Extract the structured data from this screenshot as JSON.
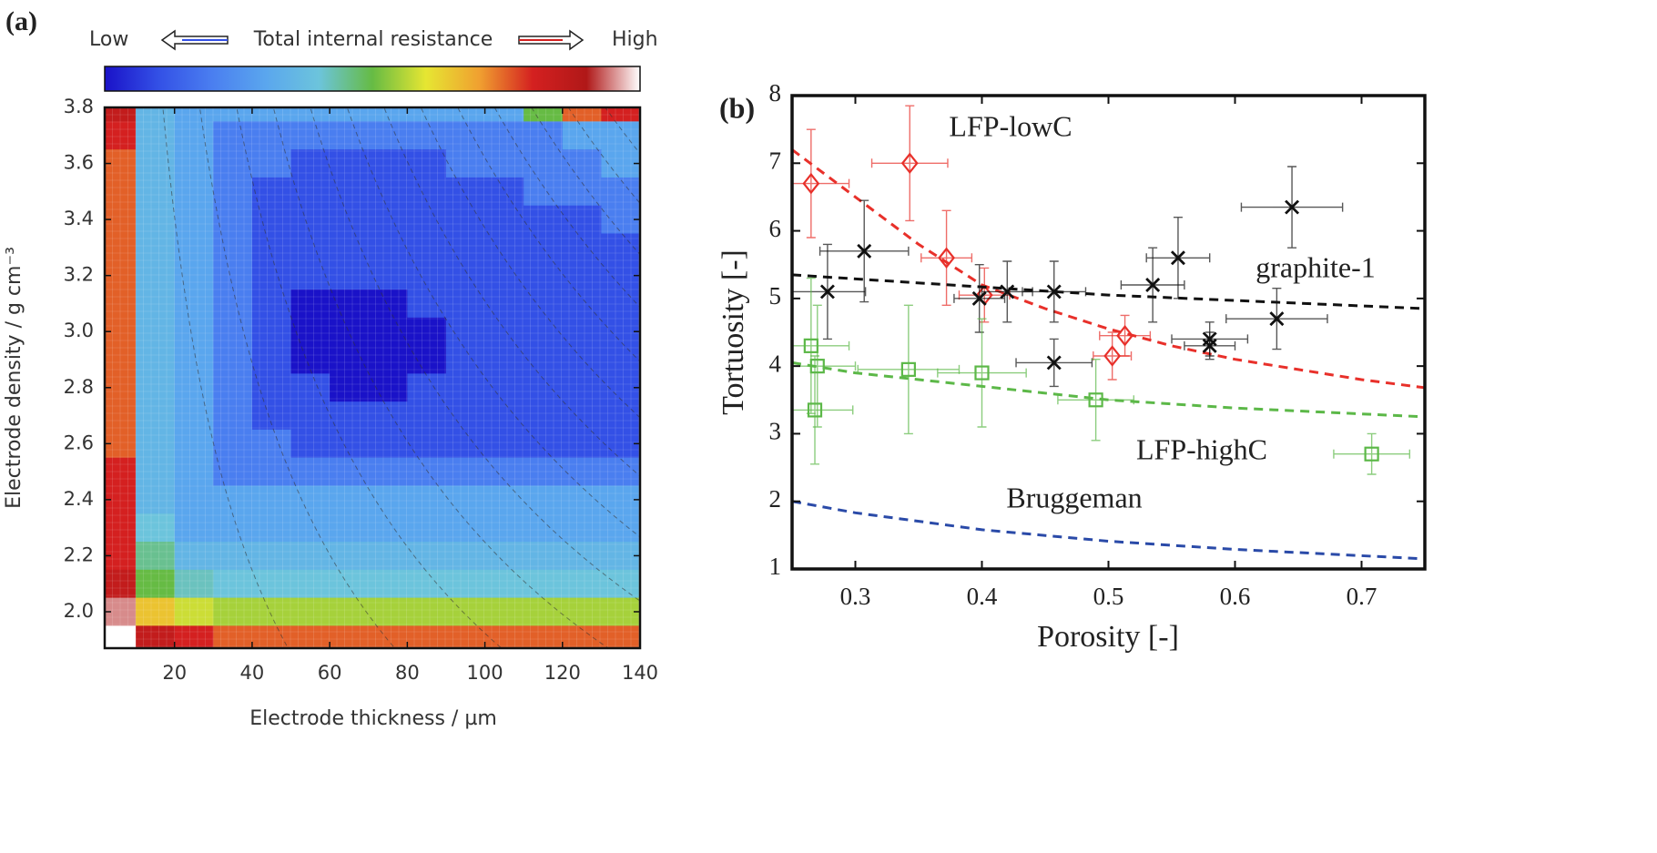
{
  "chart_data": [
    {
      "type": "heatmap",
      "panel_label": "(a)",
      "title": "Total internal resistance",
      "colorbar_low": "Low",
      "colorbar_high": "High",
      "xlabel": "Electrode thickness / µm",
      "ylabel": "Electrode density / g cm⁻³",
      "x": [
        5,
        15,
        25,
        35,
        45,
        55,
        65,
        75,
        85,
        95,
        105,
        115,
        125,
        135
      ],
      "y": [
        3.8,
        3.7,
        3.6,
        3.5,
        3.4,
        3.3,
        3.2,
        3.1,
        3.0,
        2.9,
        2.8,
        2.7,
        2.6,
        2.5,
        2.4,
        2.3,
        2.2,
        2.1,
        2.0,
        1.9
      ],
      "z": [
        [
          0.85,
          0.35,
          0.3,
          0.3,
          0.3,
          0.3,
          0.3,
          0.3,
          0.3,
          0.3,
          0.3,
          0.5,
          0.75,
          0.8
        ],
        [
          0.8,
          0.35,
          0.3,
          0.2,
          0.2,
          0.2,
          0.2,
          0.2,
          0.2,
          0.2,
          0.2,
          0.2,
          0.3,
          0.3
        ],
        [
          0.75,
          0.35,
          0.3,
          0.2,
          0.2,
          0.1,
          0.1,
          0.1,
          0.1,
          0.2,
          0.2,
          0.2,
          0.2,
          0.3
        ],
        [
          0.75,
          0.35,
          0.3,
          0.2,
          0.1,
          0.1,
          0.1,
          0.1,
          0.1,
          0.1,
          0.1,
          0.2,
          0.2,
          0.2
        ],
        [
          0.75,
          0.35,
          0.3,
          0.2,
          0.1,
          0.1,
          0.1,
          0.1,
          0.1,
          0.1,
          0.1,
          0.1,
          0.1,
          0.2
        ],
        [
          0.75,
          0.35,
          0.3,
          0.2,
          0.1,
          0.1,
          0.1,
          0.1,
          0.1,
          0.1,
          0.1,
          0.1,
          0.1,
          0.1
        ],
        [
          0.75,
          0.35,
          0.3,
          0.2,
          0.1,
          0.1,
          0.1,
          0.1,
          0.1,
          0.1,
          0.1,
          0.1,
          0.1,
          0.1
        ],
        [
          0.75,
          0.35,
          0.3,
          0.2,
          0.1,
          0,
          0,
          0,
          0.1,
          0.1,
          0.1,
          0.1,
          0.1,
          0.1
        ],
        [
          0.75,
          0.35,
          0.3,
          0.2,
          0.1,
          0,
          0,
          0,
          0,
          0.1,
          0.1,
          0.1,
          0.1,
          0.1
        ],
        [
          0.75,
          0.35,
          0.3,
          0.2,
          0.1,
          0,
          0,
          0,
          0,
          0.1,
          0.1,
          0.1,
          0.1,
          0.1
        ],
        [
          0.75,
          0.35,
          0.3,
          0.2,
          0.1,
          0.1,
          0,
          0,
          0.1,
          0.1,
          0.1,
          0.1,
          0.1,
          0.1
        ],
        [
          0.75,
          0.35,
          0.3,
          0.2,
          0.1,
          0.1,
          0.1,
          0.1,
          0.1,
          0.1,
          0.1,
          0.1,
          0.1,
          0.1
        ],
        [
          0.75,
          0.35,
          0.3,
          0.2,
          0.2,
          0.1,
          0.1,
          0.1,
          0.1,
          0.1,
          0.1,
          0.1,
          0.1,
          0.1
        ],
        [
          0.8,
          0.35,
          0.3,
          0.2,
          0.2,
          0.2,
          0.2,
          0.2,
          0.2,
          0.2,
          0.2,
          0.2,
          0.2,
          0.2
        ],
        [
          0.8,
          0.35,
          0.3,
          0.3,
          0.3,
          0.3,
          0.3,
          0.3,
          0.3,
          0.3,
          0.3,
          0.3,
          0.3,
          0.3
        ],
        [
          0.8,
          0.4,
          0.3,
          0.3,
          0.3,
          0.3,
          0.3,
          0.3,
          0.3,
          0.3,
          0.3,
          0.3,
          0.3,
          0.3
        ],
        [
          0.8,
          0.45,
          0.35,
          0.35,
          0.35,
          0.35,
          0.35,
          0.35,
          0.35,
          0.35,
          0.35,
          0.35,
          0.35,
          0.35
        ],
        [
          0.85,
          0.5,
          0.42,
          0.4,
          0.4,
          0.4,
          0.4,
          0.4,
          0.4,
          0.4,
          0.4,
          0.4,
          0.4,
          0.4
        ],
        [
          0.95,
          0.65,
          0.58,
          0.55,
          0.55,
          0.55,
          0.55,
          0.55,
          0.55,
          0.55,
          0.55,
          0.55,
          0.55,
          0.55
        ],
        [
          1,
          0.85,
          0.8,
          0.75,
          0.75,
          0.75,
          0.75,
          0.75,
          0.75,
          0.75,
          0.75,
          0.75,
          0.75,
          0.75
        ]
      ],
      "colorscale": [
        [
          0,
          "#1a12c8"
        ],
        [
          0.1,
          "#3350e6"
        ],
        [
          0.2,
          "#4a7ef0"
        ],
        [
          0.3,
          "#5aa6ee"
        ],
        [
          0.4,
          "#6cc4dc"
        ],
        [
          0.5,
          "#66bb44"
        ],
        [
          0.6,
          "#e6e632"
        ],
        [
          0.7,
          "#f0a030"
        ],
        [
          0.8,
          "#d42020"
        ],
        [
          0.9,
          "#b01818"
        ],
        [
          1,
          "#ffffff"
        ]
      ],
      "xlim": [
        2,
        140
      ],
      "ylim": [
        1.87,
        3.8
      ],
      "xticks": [
        20,
        40,
        60,
        80,
        100,
        120,
        140
      ],
      "yticks": [
        {
          "value": 2,
          "label": "2.0"
        },
        2.2,
        2.4,
        2.6,
        2.8,
        {
          "value": 3,
          "label": "3.0"
        },
        3.2,
        3.4,
        3.6,
        3.8
      ]
    },
    {
      "type": "scatter",
      "panel_label": "(b)",
      "xlabel": "Porosity [-]",
      "ylabel": "Tortuosity [-]",
      "xlim": [
        0.25,
        0.75
      ],
      "ylim": [
        1,
        8
      ],
      "xticks": [
        0.3,
        0.4,
        0.5,
        0.6,
        0.7
      ],
      "yticks": [
        1,
        2,
        3,
        4,
        5,
        6,
        7,
        8
      ],
      "series": [
        {
          "name": "LFP-lowC",
          "color": "#e8302a",
          "marker": "diamond",
          "x": [
            0.265,
            0.343,
            0.372,
            0.402,
            0.503,
            0.513
          ],
          "values": [
            6.7,
            7.0,
            5.6,
            5.05,
            4.15,
            4.45
          ],
          "xerr": [
            0.03,
            0.03,
            0.02,
            0.02,
            0.015,
            0.02
          ],
          "yerr": [
            0.8,
            0.85,
            0.7,
            0.4,
            0.35,
            0.3
          ],
          "fit_x": [
            0.25,
            0.3,
            0.35,
            0.4,
            0.45,
            0.5,
            0.55,
            0.6,
            0.65,
            0.7,
            0.75
          ],
          "fit_values": [
            7.2,
            6.5,
            5.8,
            5.2,
            4.85,
            4.55,
            4.3,
            4.1,
            3.95,
            3.8,
            3.68
          ]
        },
        {
          "name": "graphite-1",
          "color": "#111111",
          "marker": "cross",
          "x": [
            0.278,
            0.307,
            0.398,
            0.42,
            0.457,
            0.457,
            0.535,
            0.555,
            0.58,
            0.58,
            0.633,
            0.645
          ],
          "values": [
            5.1,
            5.7,
            5.0,
            5.1,
            5.1,
            4.05,
            5.2,
            5.6,
            4.4,
            4.3,
            4.7,
            6.35
          ],
          "xerr": [
            0.03,
            0.035,
            0.02,
            0.02,
            0.025,
            0.03,
            0.025,
            0.025,
            0.03,
            0.02,
            0.04,
            0.04
          ],
          "yerr": [
            0.7,
            0.75,
            0.5,
            0.45,
            0.45,
            0.35,
            0.55,
            0.6,
            0.25,
            0.2,
            0.45,
            0.6
          ],
          "fit_x": [
            0.25,
            0.5,
            0.75
          ],
          "fit_values": [
            5.35,
            5.05,
            4.85
          ]
        },
        {
          "name": "LFP-highC",
          "color": "#5cb848",
          "marker": "square",
          "x": [
            0.265,
            0.27,
            0.268,
            0.342,
            0.4,
            0.49,
            0.708
          ],
          "values": [
            4.3,
            4.0,
            3.35,
            3.95,
            3.9,
            3.5,
            2.7
          ],
          "xerr": [
            0.03,
            0.03,
            0.03,
            0.04,
            0.035,
            0.03,
            0.03
          ],
          "yerr": [
            1.0,
            0.9,
            0.8,
            0.95,
            0.8,
            0.6,
            0.3
          ],
          "fit_x": [
            0.25,
            0.3,
            0.4,
            0.5,
            0.6,
            0.75
          ],
          "fit_values": [
            4.05,
            3.9,
            3.7,
            3.5,
            3.38,
            3.25
          ]
        },
        {
          "name": "Bruggeman",
          "color": "#2a4aa8",
          "fit_x": [
            0.25,
            0.3,
            0.4,
            0.5,
            0.6,
            0.75
          ],
          "fit_values": [
            2.0,
            1.83,
            1.58,
            1.41,
            1.29,
            1.15
          ]
        }
      ]
    }
  ]
}
